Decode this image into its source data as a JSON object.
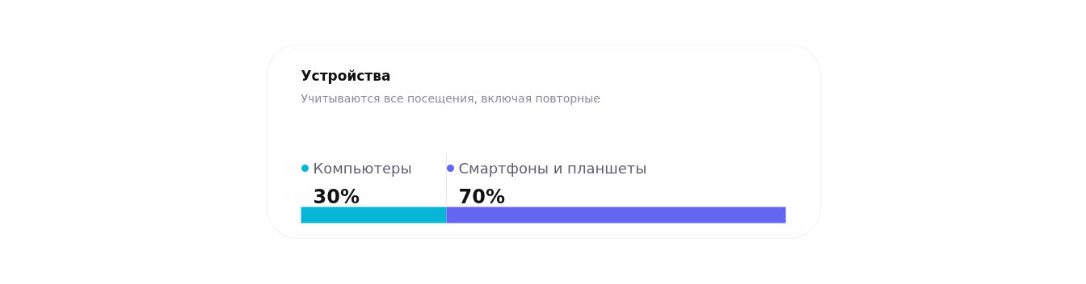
{
  "chart_data": {
    "type": "bar",
    "orientation": "horizontal",
    "stacked": true,
    "title": "Устройства",
    "subtitle": "Учитываются все посещения, включая повторные",
    "categories": [
      null
    ],
    "legend": "top",
    "series": [
      {
        "name": "Компьютеры",
        "color": "#06b6d4",
        "values": [
          30
        ],
        "value_labels": [
          "30%"
        ]
      },
      {
        "name": "Смартфоны и планшеты",
        "color": "#6366f1",
        "values": [
          70
        ],
        "value_labels": [
          "70%"
        ]
      }
    ]
  }
}
